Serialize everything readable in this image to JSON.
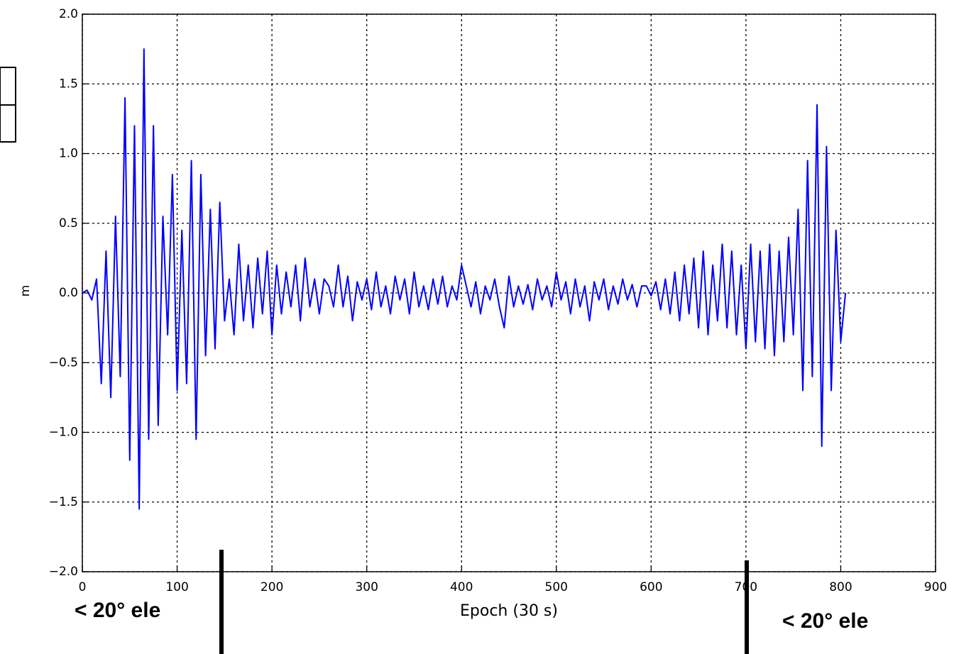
{
  "chart_data": {
    "type": "line",
    "color": "#0000ff",
    "grid": true,
    "xlabel": "Epoch (30 s)",
    "ylabel": "m",
    "annotations": [
      "< 20°   ele",
      "< 20°   ele"
    ],
    "xlim": [
      0,
      900
    ],
    "xticks": [
      0,
      100,
      200,
      300,
      400,
      500,
      600,
      700,
      800,
      900
    ],
    "ylim": [
      -2,
      2
    ],
    "yticks": [
      {
        "value": -2,
        "label": "−2.0"
      },
      {
        "value": -1.5,
        "label": "−1.5"
      },
      {
        "value": -1,
        "label": "−1.0"
      },
      {
        "value": -0.5,
        "label": "−0.5"
      },
      {
        "value": 0,
        "label": "0.0"
      },
      {
        "value": 0.5,
        "label": "0.5"
      },
      {
        "value": 1,
        "label": "1.0"
      },
      {
        "value": 1.5,
        "label": "1.5"
      },
      {
        "value": 2,
        "label": "2.0"
      }
    ],
    "x": [
      0,
      5,
      10,
      15,
      20,
      25,
      30,
      35,
      40,
      45,
      50,
      55,
      60,
      65,
      70,
      75,
      80,
      85,
      90,
      95,
      100,
      105,
      110,
      115,
      120,
      125,
      130,
      135,
      140,
      145,
      150,
      155,
      160,
      165,
      170,
      175,
      180,
      185,
      190,
      195,
      200,
      205,
      210,
      215,
      220,
      225,
      230,
      235,
      240,
      245,
      250,
      255,
      260,
      265,
      270,
      275,
      280,
      285,
      290,
      295,
      300,
      305,
      310,
      315,
      320,
      325,
      330,
      335,
      340,
      345,
      350,
      355,
      360,
      365,
      370,
      375,
      380,
      385,
      390,
      395,
      400,
      405,
      410,
      415,
      420,
      425,
      430,
      435,
      440,
      445,
      450,
      455,
      460,
      465,
      470,
      475,
      480,
      485,
      490,
      495,
      500,
      505,
      510,
      515,
      520,
      525,
      530,
      535,
      540,
      545,
      550,
      555,
      560,
      565,
      570,
      575,
      580,
      585,
      590,
      595,
      600,
      605,
      610,
      615,
      620,
      625,
      630,
      635,
      640,
      645,
      650,
      655,
      660,
      665,
      670,
      675,
      680,
      685,
      690,
      695,
      700,
      705,
      710,
      715,
      720,
      725,
      730,
      735,
      740,
      745,
      750,
      755,
      760,
      765,
      770,
      775,
      780,
      785,
      790,
      795,
      800,
      805
    ],
    "values": [
      0.0,
      0.02,
      -0.05,
      0.1,
      -0.65,
      0.3,
      -0.75,
      0.55,
      -0.6,
      1.4,
      -1.2,
      1.2,
      -1.55,
      1.75,
      -1.05,
      1.2,
      -0.95,
      0.55,
      -0.3,
      0.85,
      -0.7,
      0.45,
      -0.65,
      0.95,
      -1.05,
      0.85,
      -0.45,
      0.6,
      -0.4,
      0.65,
      -0.2,
      0.1,
      -0.3,
      0.35,
      -0.2,
      0.2,
      -0.25,
      0.25,
      -0.15,
      0.3,
      -0.3,
      0.2,
      -0.15,
      0.15,
      -0.1,
      0.2,
      -0.2,
      0.25,
      -0.1,
      0.1,
      -0.15,
      0.1,
      0.05,
      -0.1,
      0.2,
      -0.1,
      0.12,
      -0.2,
      0.08,
      -0.05,
      0.1,
      -0.12,
      0.15,
      -0.1,
      0.05,
      -0.15,
      0.12,
      -0.05,
      0.1,
      -0.15,
      0.15,
      -0.1,
      0.05,
      -0.12,
      0.1,
      -0.08,
      0.12,
      -0.1,
      0.05,
      -0.05,
      0.2,
      0.05,
      -0.1,
      0.08,
      -0.15,
      0.05,
      -0.05,
      0.1,
      -0.1,
      -0.25,
      0.12,
      -0.1,
      0.05,
      -0.08,
      0.06,
      -0.12,
      0.1,
      -0.05,
      0.05,
      -0.1,
      0.15,
      -0.05,
      0.08,
      -0.15,
      0.1,
      -0.1,
      0.05,
      -0.2,
      0.08,
      -0.05,
      0.1,
      -0.12,
      0.05,
      -0.08,
      0.1,
      -0.05,
      0.06,
      -0.1,
      0.05,
      0.05,
      -0.02,
      0.08,
      -0.12,
      0.1,
      -0.15,
      0.15,
      -0.2,
      0.2,
      -0.15,
      0.25,
      -0.25,
      0.3,
      -0.3,
      0.2,
      -0.2,
      0.35,
      -0.25,
      0.3,
      -0.3,
      0.2,
      -0.4,
      0.35,
      -0.35,
      0.3,
      -0.4,
      0.35,
      -0.45,
      0.3,
      -0.35,
      0.4,
      -0.3,
      0.6,
      -0.7,
      0.95,
      -0.6,
      1.35,
      -1.1,
      1.05,
      -0.7,
      0.45,
      -0.35,
      0.0
    ]
  }
}
